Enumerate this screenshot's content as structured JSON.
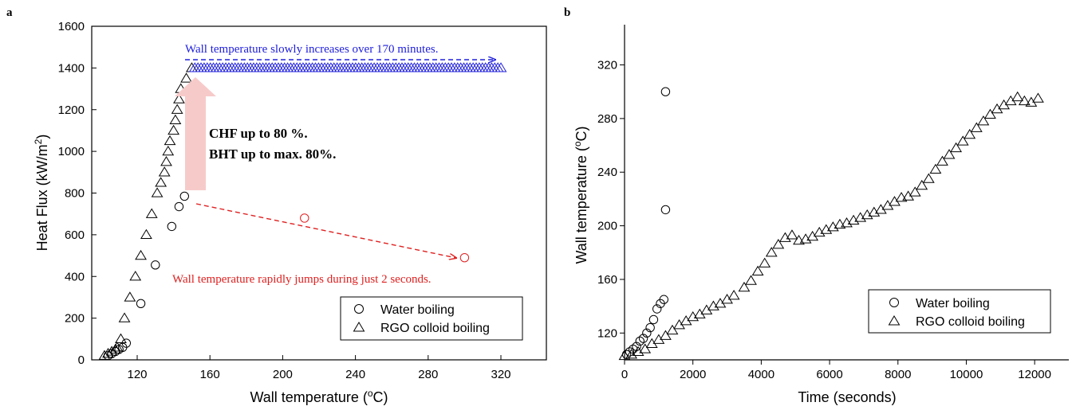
{
  "chart_data": [
    {
      "panel": "a",
      "type": "scatter",
      "xlabel": "Wall temperature (",
      "xlabel_sup": "o",
      "xlabel_end": "C)",
      "ylabel": "Heat Flux (kW/m",
      "ylabel_sup": "2",
      "ylabel_end": ")",
      "xlim": [
        95,
        345
      ],
      "ylim": [
        0,
        1600
      ],
      "xticks": [
        "120",
        "160",
        "200",
        "240",
        "280",
        "320"
      ],
      "yticks": [
        "0",
        "200",
        "400",
        "600",
        "800",
        "1000",
        "1200",
        "1400",
        "1600"
      ],
      "legend_position": "bottom-right",
      "series": [
        {
          "name": "Water boiling",
          "marker": "circle",
          "points": [
            [
              104,
              20
            ],
            [
              106,
              30
            ],
            [
              108,
              40
            ],
            [
              110,
              50
            ],
            [
              112,
              60
            ],
            [
              114,
              80
            ],
            [
              122,
              270
            ],
            [
              130,
              455
            ],
            [
              139,
              640
            ],
            [
              143,
              735
            ],
            [
              146,
              785
            ],
            [
              212,
              680
            ],
            [
              300,
              490
            ]
          ],
          "red_points": [
            [
              212,
              680
            ],
            [
              300,
              490
            ]
          ]
        },
        {
          "name": "RGO colloid boiling",
          "marker": "triangle",
          "points": [
            [
              102,
              20
            ],
            [
              104,
              30
            ],
            [
              106,
              40
            ],
            [
              108,
              50
            ],
            [
              109,
              60
            ],
            [
              111,
              100
            ],
            [
              113,
              200
            ],
            [
              116,
              300
            ],
            [
              119,
              400
            ],
            [
              122,
              500
            ],
            [
              125,
              600
            ],
            [
              128,
              700
            ],
            [
              131,
              800
            ],
            [
              133,
              850
            ],
            [
              135,
              900
            ],
            [
              136,
              950
            ],
            [
              137,
              1000
            ],
            [
              138,
              1050
            ],
            [
              140,
              1100
            ],
            [
              141,
              1150
            ],
            [
              142,
              1200
            ],
            [
              143,
              1250
            ],
            [
              144,
              1300
            ],
            [
              147,
              1350
            ],
            [
              150,
              1400
            ]
          ],
          "plateau": {
            "x_start": 150,
            "x_end": 320,
            "y": 1400,
            "blue": true
          }
        }
      ],
      "annotations": {
        "top": "Wall temperature slowly increases over 170 minutes.",
        "bottom": "Wall temperature rapidly jumps during just 2 seconds.",
        "middle_line1": "CHF up to 80 %.",
        "middle_line2": "BHT up to max. 80%."
      },
      "colors": {
        "top": "#2020dd",
        "bottom": "#e02020",
        "arrow": "#f7caca"
      }
    },
    {
      "panel": "b",
      "type": "scatter",
      "xlabel": "Time (seconds)",
      "ylabel": "Wall temperature (",
      "ylabel_sup": "o",
      "ylabel_end": "C)",
      "xlim": [
        0,
        13000
      ],
      "ylim": [
        100,
        350
      ],
      "xticks": [
        "0",
        "2000",
        "4000",
        "6000",
        "8000",
        "10000",
        "12000"
      ],
      "yticks": [
        "120",
        "160",
        "200",
        "240",
        "280",
        "320"
      ],
      "legend_position": "bottom-right",
      "series": [
        {
          "name": "Water boiling",
          "marker": "circle",
          "points": [
            [
              60,
              104
            ],
            [
              150,
              106
            ],
            [
              250,
              108
            ],
            [
              350,
              110
            ],
            [
              450,
              114
            ],
            [
              550,
              116
            ],
            [
              650,
              120
            ],
            [
              750,
              124
            ],
            [
              850,
              130
            ],
            [
              950,
              138
            ],
            [
              1050,
              142
            ],
            [
              1150,
              145
            ],
            [
              1200,
              212
            ],
            [
              1200,
              300
            ]
          ]
        },
        {
          "name": "RGO colloid boiling",
          "marker": "triangle",
          "points": [
            [
              0,
              103
            ],
            [
              200,
              104
            ],
            [
              400,
              106
            ],
            [
              600,
              108
            ],
            [
              800,
              112
            ],
            [
              1000,
              115
            ],
            [
              1200,
              118
            ],
            [
              1400,
              122
            ],
            [
              1600,
              126
            ],
            [
              1800,
              129
            ],
            [
              2000,
              132
            ],
            [
              2200,
              134
            ],
            [
              2400,
              137
            ],
            [
              2600,
              140
            ],
            [
              2800,
              142
            ],
            [
              3000,
              145
            ],
            [
              3200,
              148
            ],
            [
              3500,
              154
            ],
            [
              3700,
              159
            ],
            [
              3900,
              166
            ],
            [
              4100,
              172
            ],
            [
              4300,
              180
            ],
            [
              4500,
              186
            ],
            [
              4700,
              191
            ],
            [
              4900,
              193
            ],
            [
              5100,
              189
            ],
            [
              5300,
              190
            ],
            [
              5500,
              192
            ],
            [
              5700,
              195
            ],
            [
              5900,
              197
            ],
            [
              6100,
              199
            ],
            [
              6300,
              201
            ],
            [
              6500,
              202
            ],
            [
              6700,
              204
            ],
            [
              6900,
              206
            ],
            [
              7100,
              208
            ],
            [
              7300,
              210
            ],
            [
              7500,
              212
            ],
            [
              7700,
              215
            ],
            [
              7900,
              218
            ],
            [
              8100,
              221
            ],
            [
              8300,
              222
            ],
            [
              8500,
              225
            ],
            [
              8700,
              230
            ],
            [
              8900,
              235
            ],
            [
              9100,
              242
            ],
            [
              9300,
              248
            ],
            [
              9500,
              253
            ],
            [
              9700,
              258
            ],
            [
              9900,
              263
            ],
            [
              10100,
              268
            ],
            [
              10300,
              273
            ],
            [
              10500,
              278
            ],
            [
              10700,
              283
            ],
            [
              10900,
              287
            ],
            [
              11100,
              290
            ],
            [
              11300,
              293
            ],
            [
              11500,
              296
            ],
            [
              11700,
              293
            ],
            [
              11900,
              292
            ],
            [
              12100,
              295
            ]
          ]
        }
      ]
    }
  ],
  "panel_labels": {
    "a": "a",
    "b": "b"
  }
}
